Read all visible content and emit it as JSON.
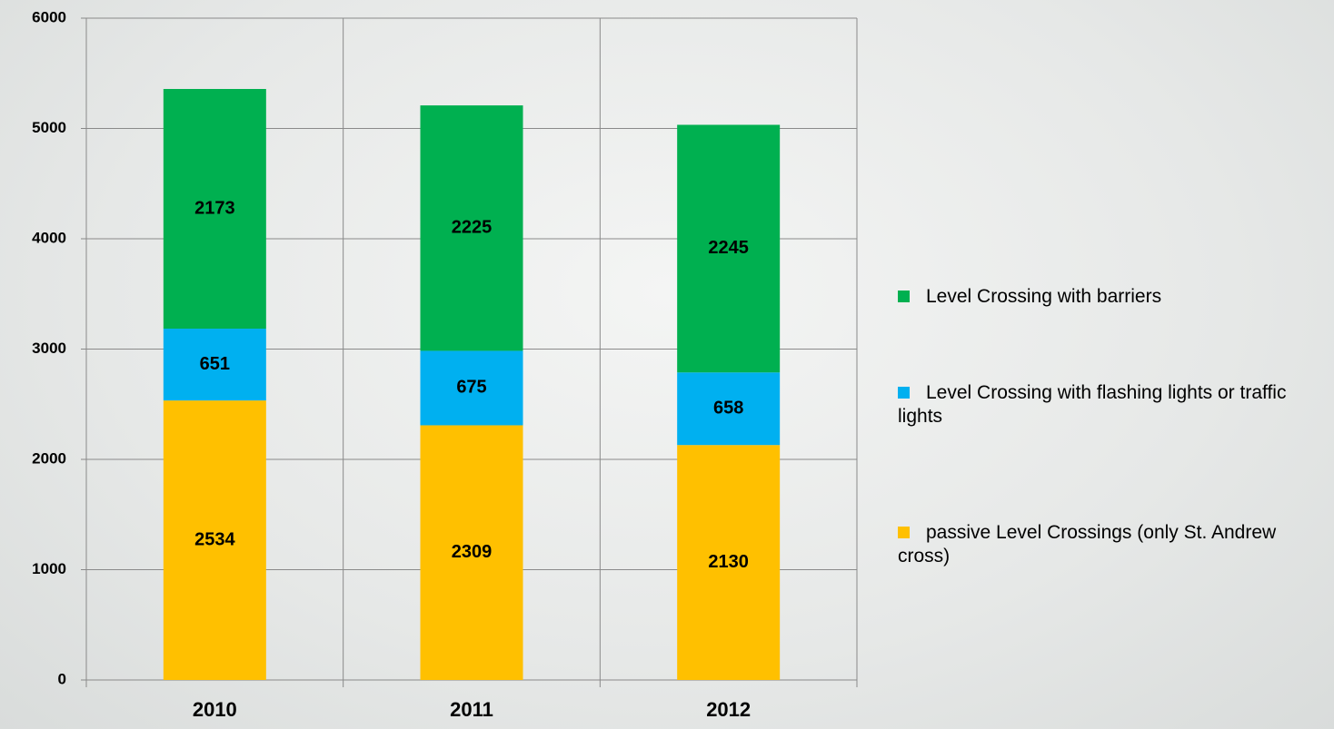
{
  "chart_data": {
    "type": "stacked_bar",
    "categories": [
      "2010",
      "2011",
      "2012"
    ],
    "series": [
      {
        "name": "Level Crossing with barriers",
        "color": "#00b050",
        "values": [
          2173,
          2225,
          2245
        ]
      },
      {
        "name": "Level Crossing with flashing lights or traffic lights",
        "color": "#00b0f0",
        "values": [
          651,
          675,
          658
        ]
      },
      {
        "name": "passive Level Crossings (only St. Andrew cross)",
        "color": "#ffc000",
        "values": [
          2534,
          2309,
          2130
        ]
      }
    ],
    "ylim": [
      0,
      6000
    ],
    "yticks": [
      0,
      1000,
      2000,
      3000,
      4000,
      5000,
      6000
    ],
    "grid": true,
    "legend": "right"
  }
}
